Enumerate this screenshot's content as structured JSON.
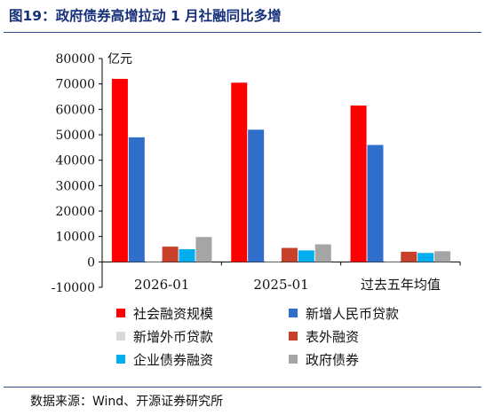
{
  "figure": {
    "title": "图19：政府债券高增拉动 1 月社融同比多增",
    "source": "数据来源：Wind、开源证券研究所"
  },
  "chart_data": {
    "type": "bar",
    "unit_label": "亿元",
    "categories": [
      "2026-01",
      "2025-01",
      "过去五年均值"
    ],
    "series": [
      {
        "name": "社会融资规模",
        "color": "#ff0000",
        "values": [
          72000,
          70500,
          61500
        ]
      },
      {
        "name": "新增人民币贷款",
        "color": "#2f6fcb",
        "values": [
          49000,
          52000,
          46000
        ]
      },
      {
        "name": "新增外币贷款",
        "color": "#d9d9d9",
        "values": [
          200,
          300,
          200
        ]
      },
      {
        "name": "表外融资",
        "color": "#c8402a",
        "values": [
          6000,
          5500,
          4000
        ]
      },
      {
        "name": "企业债券融资",
        "color": "#00aeef",
        "values": [
          5000,
          4500,
          3500
        ]
      },
      {
        "name": "政府债券",
        "color": "#a5a5a5",
        "values": [
          9800,
          6900,
          4200
        ]
      }
    ],
    "ylim": [
      -10000,
      80000
    ],
    "yticks": [
      80000,
      70000,
      60000,
      50000,
      40000,
      30000,
      20000,
      10000,
      0,
      -10000
    ],
    "legend_position": "bottom",
    "grid": false
  }
}
